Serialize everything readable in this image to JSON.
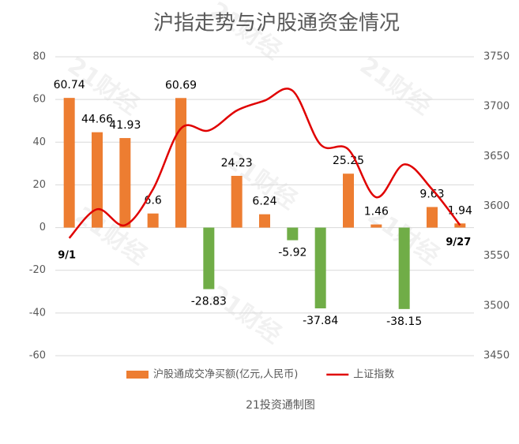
{
  "chart_data": {
    "type": "bar_line",
    "title": "沪指走势与沪股通资金情况",
    "footer": "21投资通制图",
    "watermark": "21财经",
    "categories": [
      "9/1",
      null,
      null,
      null,
      null,
      null,
      null,
      null,
      null,
      null,
      null,
      null,
      null,
      null,
      "9/27"
    ],
    "series": [
      {
        "name": "沪股通成交净买额(亿元,人民币)",
        "type": "bar",
        "color": "#ed7d31",
        "negative_color": "#70ad47",
        "values": [
          60.74,
          44.66,
          41.93,
          6.6,
          60.69,
          -28.83,
          24.23,
          6.24,
          -5.92,
          -37.84,
          25.25,
          1.46,
          -38.15,
          9.63,
          1.94
        ]
      },
      {
        "name": "上证指数",
        "type": "line",
        "axis": "y2",
        "color": "#e00000",
        "values": [
          3568,
          3597,
          3581,
          3617,
          3678,
          3676,
          3696,
          3706,
          3716,
          3662,
          3657,
          3609,
          3642,
          3617,
          3581
        ]
      }
    ],
    "ylim": [
      -60,
      80
    ],
    "yticks": [
      -60,
      -40,
      -20,
      0,
      20,
      40,
      60,
      80
    ],
    "y2lim": [
      3450,
      3750
    ],
    "y2ticks": [
      3450,
      3500,
      3550,
      3600,
      3650,
      3700,
      3750
    ],
    "grid": true,
    "legend": "bottom"
  }
}
